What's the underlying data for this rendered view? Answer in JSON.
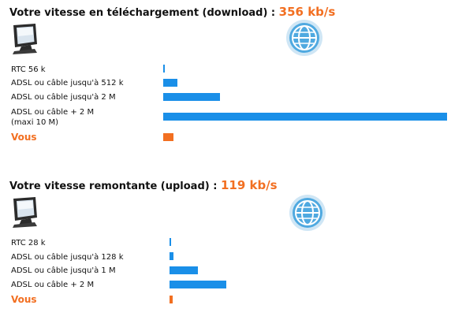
{
  "colors": {
    "reference_bar": "#1a8fe8",
    "user_bar": "#f26f21",
    "speed_value": "#f26f21"
  },
  "icons": {
    "computer": "computer-monitor-icon",
    "globe": "internet-globe-icon"
  },
  "chart_data": [
    {
      "type": "bar",
      "orientation": "horizontal",
      "title": "Votre vitesse en téléchargement (download) :",
      "speed_text": "356 kb/s",
      "categories": [
        "RTC 56 k",
        "ADSL ou câble jusqu'à 512 k",
        "ADSL ou câble jusqu'à 2 M",
        "ADSL ou câble + 2 M",
        "Vous"
      ],
      "category_extra": [
        "",
        "",
        "",
        "(maxi 10 M)",
        ""
      ],
      "values": [
        56,
        512,
        2000,
        10000,
        356
      ],
      "highlight_index": 4,
      "xlim": [
        0,
        10000
      ],
      "grid": false
    },
    {
      "type": "bar",
      "orientation": "horizontal",
      "title": "Votre vitesse remontante (upload) :",
      "speed_text": "119 kb/s",
      "categories": [
        "RTC 28 k",
        "ADSL ou câble jusqu'à 128 k",
        "ADSL ou câble jusqu'à 1 M",
        "ADSL ou câble + 2 M",
        "Vous"
      ],
      "category_extra": [
        "",
        "",
        "",
        "",
        ""
      ],
      "values": [
        28,
        128,
        1000,
        2000,
        119
      ],
      "highlight_index": 4,
      "xlim": [
        0,
        10000
      ],
      "grid": false
    }
  ]
}
